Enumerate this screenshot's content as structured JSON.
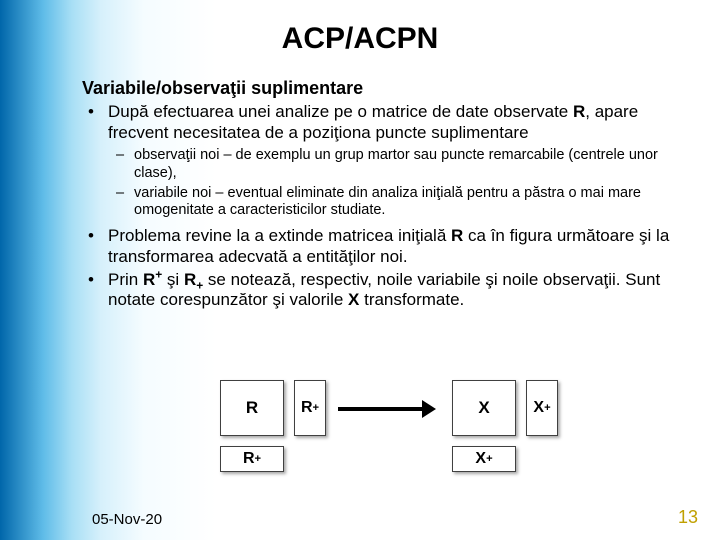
{
  "title": "ACP/ACPN",
  "subtitle": "Variabile/observaţii suplimentare",
  "bullets": {
    "b1": "După efectuarea unei analize pe o matrice de date observate ",
    "b1R": "R",
    "b1tail": ", apare frecvent necesitatea de a poziţiona puncte suplimentare",
    "sub1": "observaţii noi – de exemplu un grup martor sau puncte remarcabile (centrele unor clase),",
    "sub2": "variabile noi – eventual eliminate din analiza iniţială pentru a păstra o mai mare omogenitate a caracteristicilor studiate.",
    "b2a": "Problema revine la a extinde matricea iniţială ",
    "b2R": "R",
    "b2b": " ca în figura următoare şi la transformarea adecvată a entităţilor noi.",
    "b3a": "Prin ",
    "b3Rsup": "R",
    "b3supplus": "+",
    "b3mid": " şi ",
    "b3Rsub": "R",
    "b3subplus": "+",
    "b3b": " se notează, respectiv, noile variabile şi noile observaţii. Sunt notate corespunzător şi valorile ",
    "b3X": "X",
    "b3c": " transformate."
  },
  "diagram": {
    "R": "R",
    "Rplus_sup": "+",
    "Rplus_sub": "+",
    "X": "X",
    "Xplus_sup": "+",
    "Xplus_sub": "+"
  },
  "footer": {
    "date": "05-Nov-20",
    "page": "13"
  },
  "style": {
    "title_fontsize": 30,
    "body_fontsize": 17,
    "sub_fontsize": 14.5,
    "footer_fontsize": 15,
    "page_fontsize": 18,
    "page_color": "#c0a000",
    "bg_gradient": [
      "#0066aa",
      "#5fbce8",
      "#a8dff5",
      "#d6f0fb",
      "#f5fcff",
      "#ffffff"
    ],
    "box_border_color": "#404040",
    "box_bg": "#ffffff",
    "arrow_color": "#000000"
  }
}
